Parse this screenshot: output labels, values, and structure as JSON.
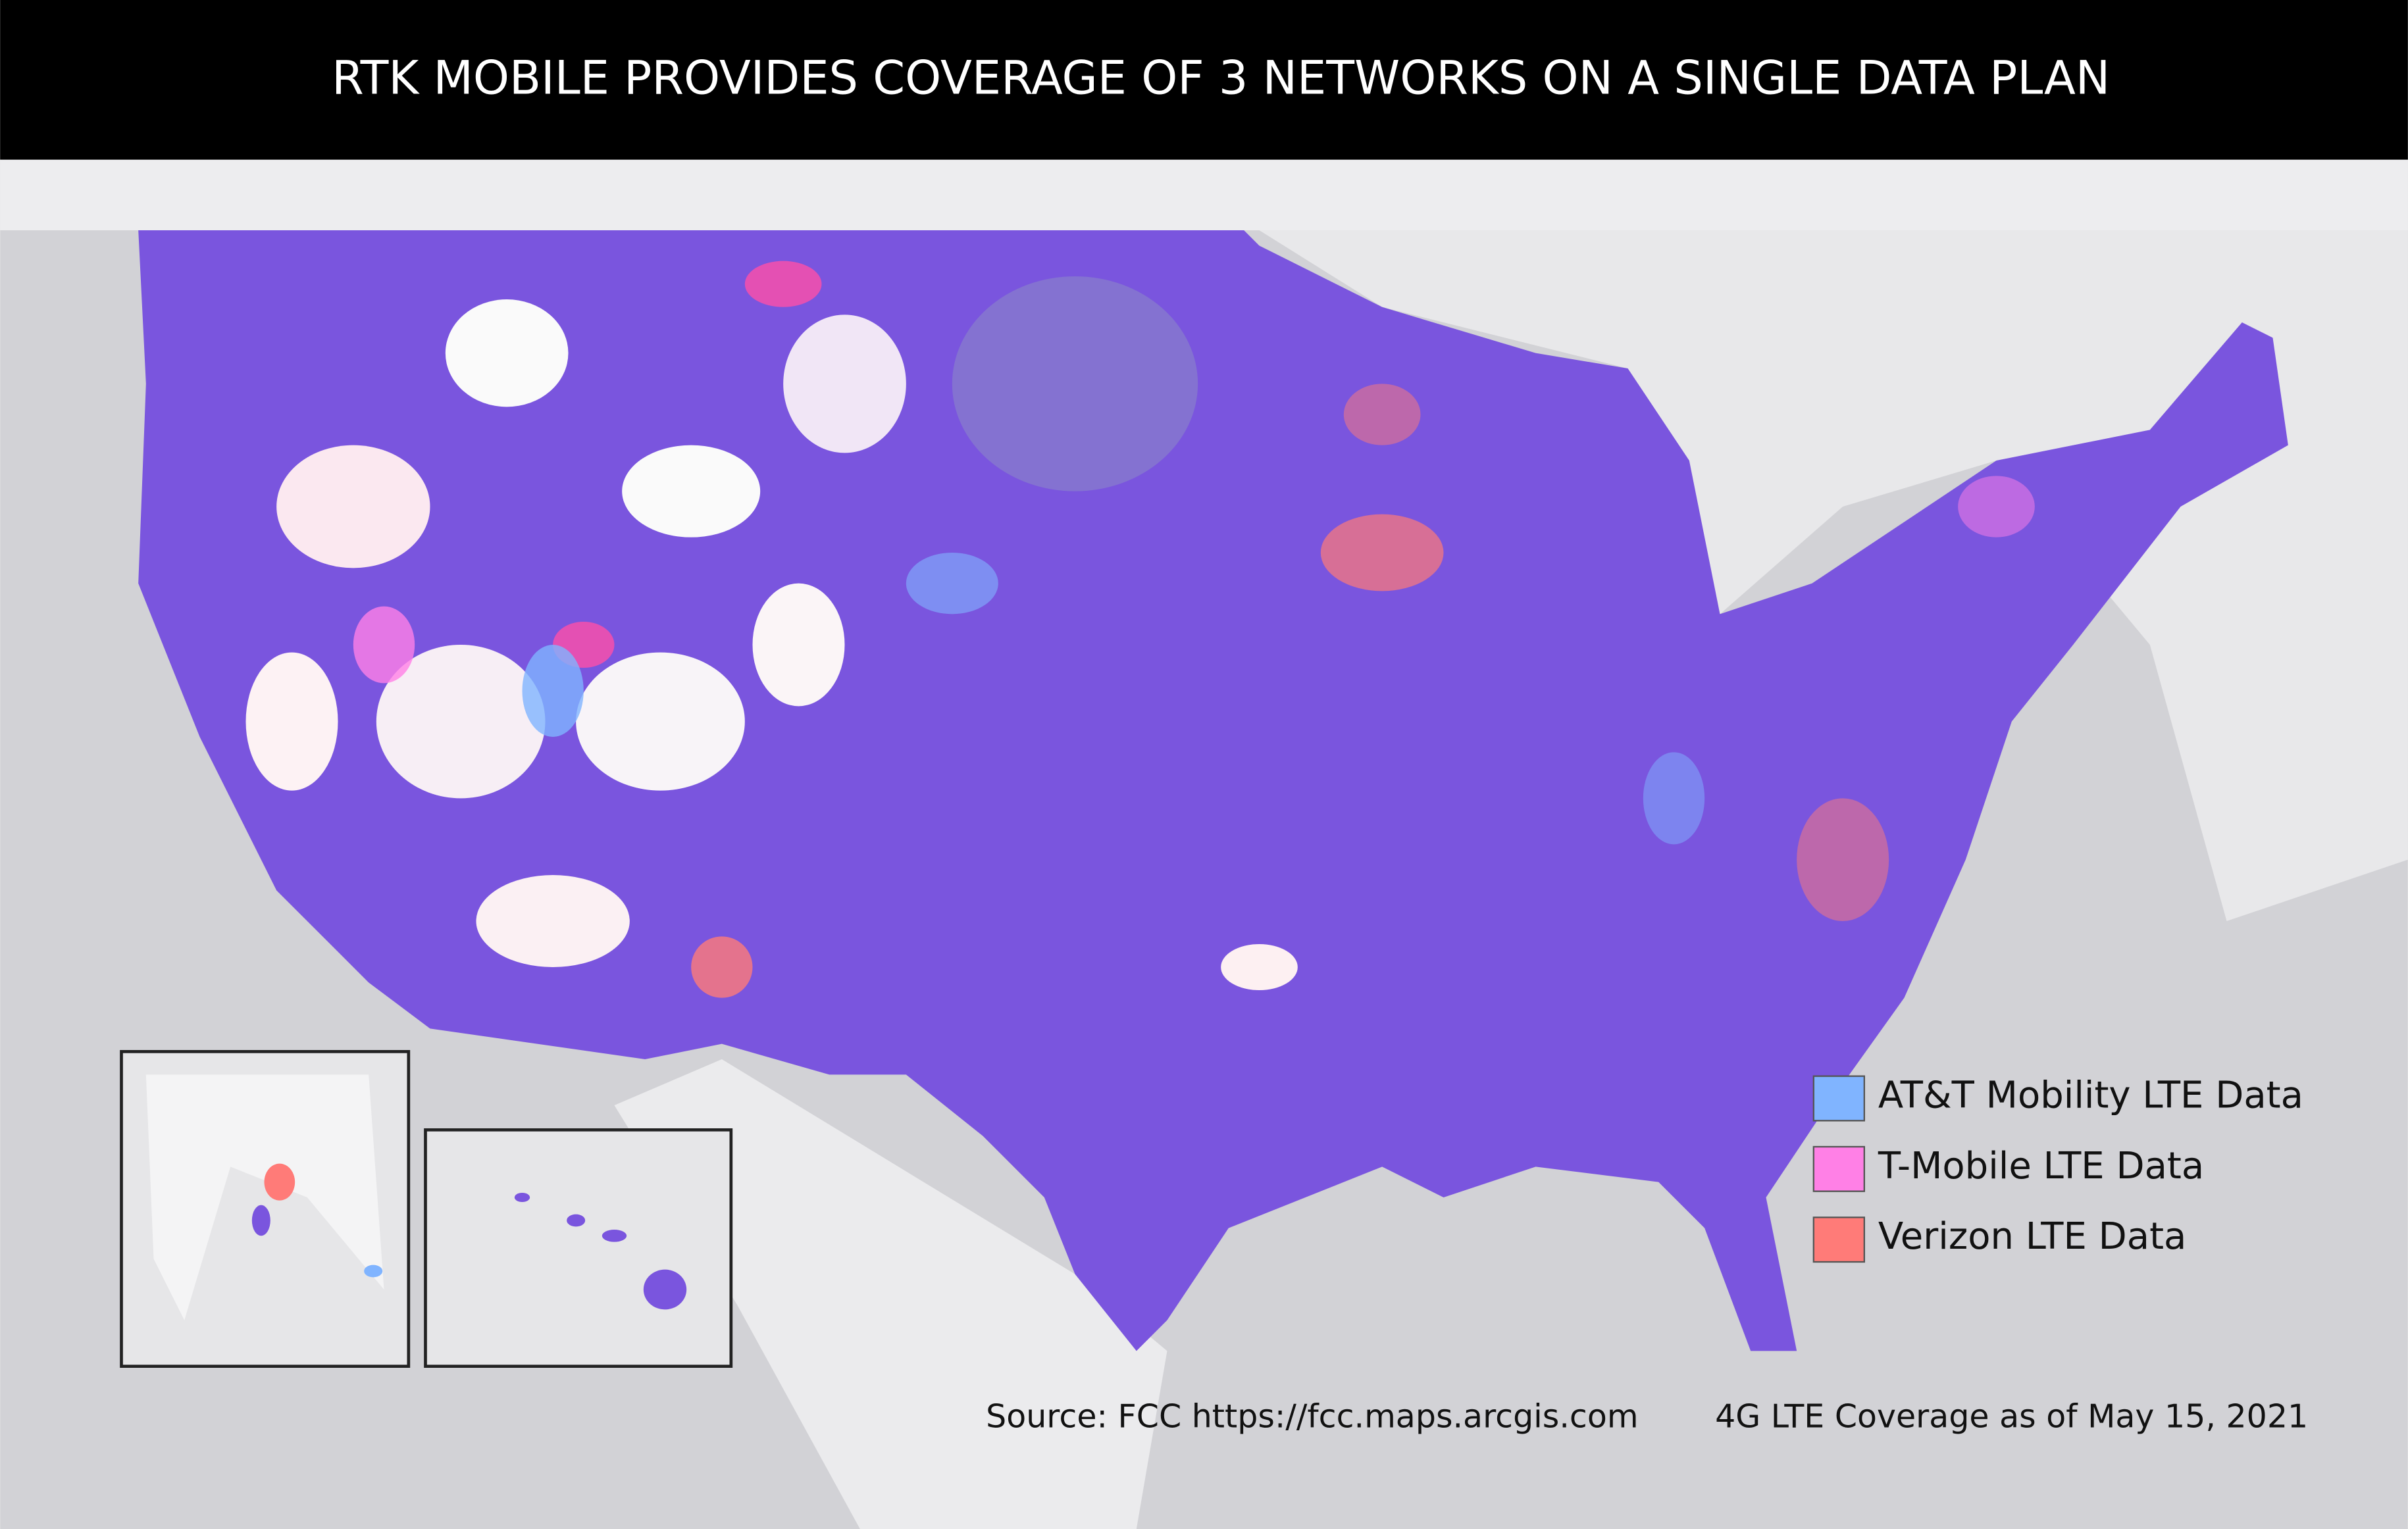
{
  "header": {
    "title": "RTK MOBILE PROVIDES COVERAGE OF 3 NETWORKS ON A SINGLE DATA PLAN"
  },
  "legend": {
    "items": [
      {
        "label": "AT&T Mobility LTE Data",
        "color": "#80b4ff"
      },
      {
        "label": "T-Mobile LTE Data",
        "color": "#ff80e6"
      },
      {
        "label": "Verizon LTE Data",
        "color": "#ff7b78"
      }
    ]
  },
  "footer": {
    "source": "Source: FCC https://fcc.maps.arcgis.com",
    "coverage": "4G LTE Coverage as of May 15, 2021"
  }
}
